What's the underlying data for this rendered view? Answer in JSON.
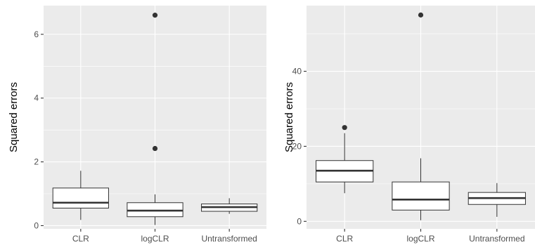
{
  "chart_data": [
    {
      "type": "boxplot",
      "ylabel": "Squared errors",
      "xlabel": "",
      "categories": [
        "CLR",
        "logCLR",
        "Untransformed"
      ],
      "ylim": [
        -0.1,
        6.9
      ],
      "yticks": [
        0,
        2,
        4,
        6
      ],
      "grid": true,
      "background": "#ebebeb",
      "boxes": [
        {
          "category": "CLR",
          "min": 0.18,
          "q1": 0.55,
          "median": 0.72,
          "q3": 1.18,
          "max": 1.72,
          "outliers": []
        },
        {
          "category": "logCLR",
          "min": 0.02,
          "q1": 0.28,
          "median": 0.47,
          "q3": 0.72,
          "max": 0.98,
          "outliers": [
            2.42,
            6.6
          ]
        },
        {
          "category": "Untransformed",
          "min": 0.37,
          "q1": 0.45,
          "median": 0.58,
          "q3": 0.68,
          "max": 0.86,
          "outliers": []
        }
      ]
    },
    {
      "type": "boxplot",
      "ylabel": "Squared errors",
      "xlabel": "",
      "categories": [
        "CLR",
        "logCLR",
        "Untransformed"
      ],
      "ylim": [
        -2,
        57.5
      ],
      "yticks": [
        0,
        20,
        40
      ],
      "grid": true,
      "background": "#ebebeb",
      "boxes": [
        {
          "category": "CLR",
          "min": 7.5,
          "q1": 10.5,
          "median": 13.5,
          "q3": 16.2,
          "max": 23.5,
          "outliers": [
            25.0
          ]
        },
        {
          "category": "logCLR",
          "min": 0.3,
          "q1": 3.0,
          "median": 5.8,
          "q3": 10.5,
          "max": 16.8,
          "outliers": [
            55.0
          ]
        },
        {
          "category": "Untransformed",
          "min": 1.2,
          "q1": 4.5,
          "median": 6.2,
          "q3": 7.7,
          "max": 10.2,
          "outliers": []
        }
      ]
    }
  ]
}
